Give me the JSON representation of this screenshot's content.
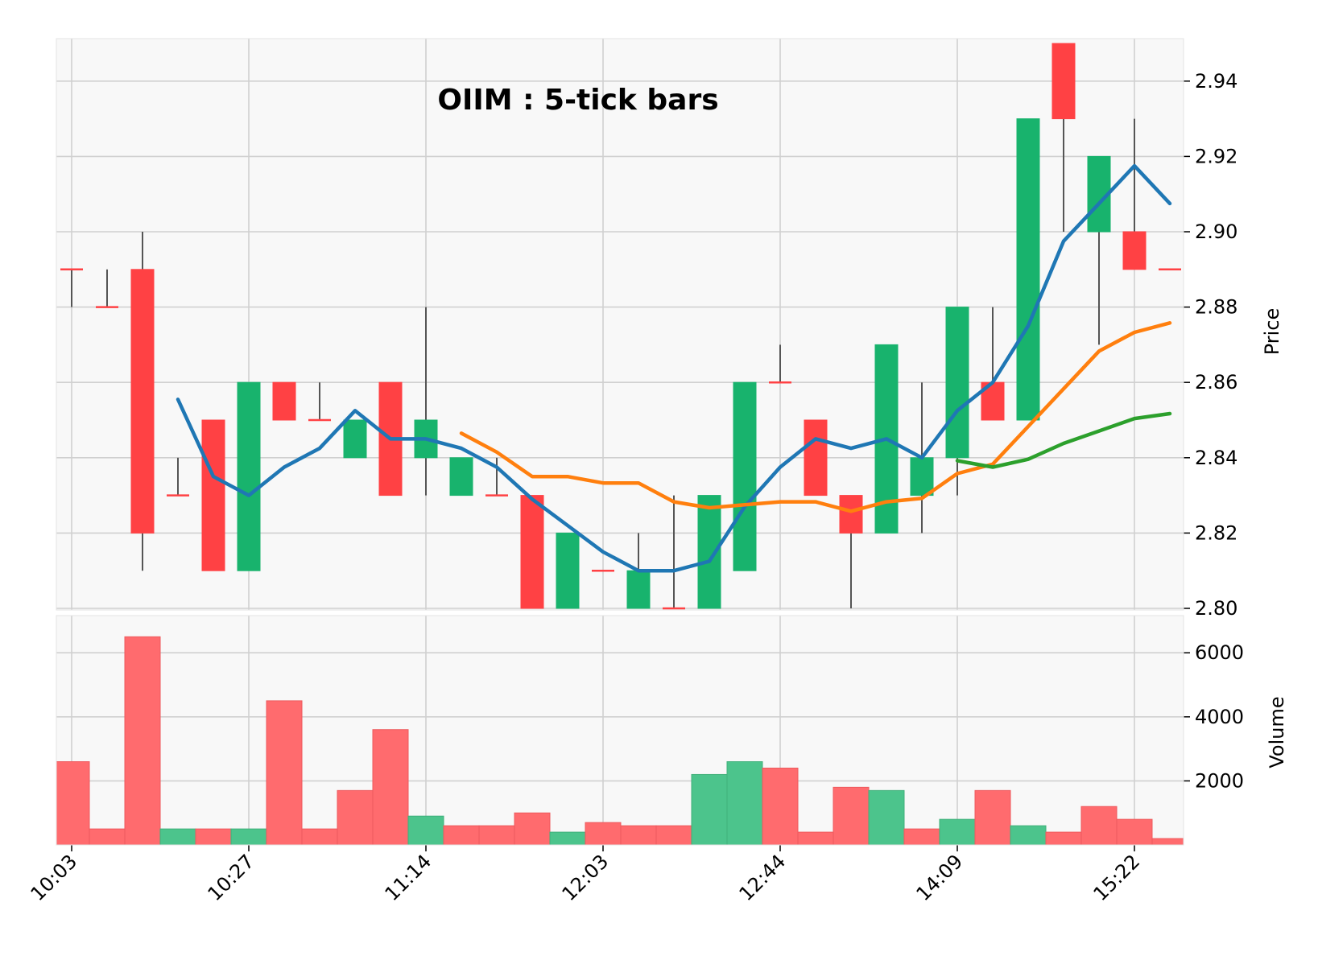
{
  "chart_data": {
    "type": "candlestick",
    "title": "OIIM : 5-tick bars",
    "price_axis": {
      "label": "Price",
      "ylim": [
        2.8,
        2.95
      ],
      "ticks": [
        2.8,
        2.82,
        2.84,
        2.86,
        2.88,
        2.9,
        2.92,
        2.94
      ],
      "position": "right"
    },
    "volume_axis": {
      "label": "Volume",
      "ylim": [
        0,
        6500
      ],
      "ticks": [
        2000,
        4000,
        6000
      ],
      "position": "right"
    },
    "x_tick_labels": [
      "10:03",
      "10:27",
      "11:14",
      "12:03",
      "12:44",
      "14:09",
      "15:22"
    ],
    "x_tick_indices": [
      0,
      5,
      10,
      15,
      20,
      25,
      30
    ],
    "grid": true,
    "colors": {
      "up": "#18b36d",
      "down": "#ff4144",
      "volume_up": "#4cc48c",
      "volume_down": "#ff6b6e",
      "wick": "#555555",
      "background": "#f8f8f8",
      "grid": "#d0d0d0"
    },
    "candles": [
      {
        "o": 2.89,
        "h": 2.89,
        "l": 2.88,
        "c": 2.89
      },
      {
        "o": 2.88,
        "h": 2.89,
        "l": 2.88,
        "c": 2.88
      },
      {
        "o": 2.89,
        "h": 2.9,
        "l": 2.81,
        "c": 2.82
      },
      {
        "o": 2.83,
        "h": 2.84,
        "l": 2.83,
        "c": 2.83
      },
      {
        "o": 2.85,
        "h": 2.85,
        "l": 2.81,
        "c": 2.81
      },
      {
        "o": 2.81,
        "h": 2.86,
        "l": 2.81,
        "c": 2.86
      },
      {
        "o": 2.86,
        "h": 2.86,
        "l": 2.85,
        "c": 2.85
      },
      {
        "o": 2.85,
        "h": 2.86,
        "l": 2.85,
        "c": 2.85
      },
      {
        "o": 2.84,
        "h": 2.85,
        "l": 2.84,
        "c": 2.85
      },
      {
        "o": 2.86,
        "h": 2.86,
        "l": 2.83,
        "c": 2.83
      },
      {
        "o": 2.84,
        "h": 2.88,
        "l": 2.83,
        "c": 2.85
      },
      {
        "o": 2.83,
        "h": 2.84,
        "l": 2.83,
        "c": 2.84
      },
      {
        "o": 2.83,
        "h": 2.84,
        "l": 2.83,
        "c": 2.83
      },
      {
        "o": 2.83,
        "h": 2.83,
        "l": 2.8,
        "c": 2.8
      },
      {
        "o": 2.8,
        "h": 2.82,
        "l": 2.8,
        "c": 2.82
      },
      {
        "o": 2.81,
        "h": 2.81,
        "l": 2.81,
        "c": 2.81
      },
      {
        "o": 2.8,
        "h": 2.82,
        "l": 2.8,
        "c": 2.81
      },
      {
        "o": 2.8,
        "h": 2.83,
        "l": 2.8,
        "c": 2.8
      },
      {
        "o": 2.8,
        "h": 2.83,
        "l": 2.8,
        "c": 2.83
      },
      {
        "o": 2.81,
        "h": 2.86,
        "l": 2.81,
        "c": 2.86
      },
      {
        "o": 2.86,
        "h": 2.87,
        "l": 2.86,
        "c": 2.86
      },
      {
        "o": 2.85,
        "h": 2.85,
        "l": 2.83,
        "c": 2.83
      },
      {
        "o": 2.83,
        "h": 2.83,
        "l": 2.8,
        "c": 2.82
      },
      {
        "o": 2.82,
        "h": 2.87,
        "l": 2.82,
        "c": 2.87
      },
      {
        "o": 2.83,
        "h": 2.86,
        "l": 2.82,
        "c": 2.84
      },
      {
        "o": 2.84,
        "h": 2.88,
        "l": 2.83,
        "c": 2.88
      },
      {
        "o": 2.86,
        "h": 2.88,
        "l": 2.85,
        "c": 2.85
      },
      {
        "o": 2.85,
        "h": 2.93,
        "l": 2.85,
        "c": 2.93
      },
      {
        "o": 2.95,
        "h": 2.95,
        "l": 2.9,
        "c": 2.93
      },
      {
        "o": 2.9,
        "h": 2.92,
        "l": 2.87,
        "c": 2.92
      },
      {
        "o": 2.9,
        "h": 2.93,
        "l": 2.89,
        "c": 2.89
      },
      {
        "o": 2.89,
        "h": 2.89,
        "l": 2.89,
        "c": 2.89
      }
    ],
    "volume": [
      2600,
      500,
      6500,
      500,
      500,
      500,
      4500,
      500,
      1700,
      3600,
      900,
      600,
      600,
      1000,
      400,
      700,
      600,
      600,
      2200,
      2600,
      2400,
      400,
      1800,
      1700,
      500,
      800,
      1700,
      600,
      400,
      1200,
      800,
      200
    ],
    "volume_direction": [
      "down",
      "down",
      "down",
      "up",
      "down",
      "up",
      "down",
      "down",
      "down",
      "down",
      "up",
      "down",
      "down",
      "down",
      "up",
      "down",
      "down",
      "down",
      "up",
      "up",
      "down",
      "down",
      "down",
      "up",
      "down",
      "up",
      "down",
      "up",
      "down",
      "down",
      "down",
      "down"
    ],
    "series": [
      {
        "color": "#1f77b4",
        "values": [
          null,
          null,
          null,
          2.8555,
          2.835,
          2.83,
          2.8375,
          2.8425,
          2.8525,
          2.845,
          2.845,
          2.8425,
          2.8375,
          2.829,
          2.822,
          2.815,
          2.81,
          2.81,
          2.8125,
          2.827,
          2.8375,
          2.845,
          2.8425,
          2.845,
          2.84,
          2.8525,
          2.86,
          2.875,
          2.8975,
          2.9075,
          2.9175,
          2.9075
        ]
      },
      {
        "color": "#ff7f0e",
        "values": [
          null,
          null,
          null,
          null,
          null,
          null,
          null,
          null,
          null,
          null,
          null,
          2.8465,
          2.8415,
          2.835,
          2.835,
          2.8333,
          2.8333,
          2.8283,
          2.8267,
          2.8275,
          2.8283,
          2.8283,
          2.8258,
          2.8283,
          2.8292,
          2.8358,
          2.8383,
          2.8483,
          2.8583,
          2.8683,
          2.8733,
          2.8758
        ]
      },
      {
        "color": "#2ca02c",
        "values": [
          null,
          null,
          null,
          null,
          null,
          null,
          null,
          null,
          null,
          null,
          null,
          null,
          null,
          null,
          null,
          null,
          null,
          null,
          null,
          null,
          null,
          null,
          null,
          null,
          null,
          2.8392,
          2.8375,
          2.8396,
          2.8438,
          2.8471,
          2.8504,
          2.8517
        ]
      }
    ]
  }
}
